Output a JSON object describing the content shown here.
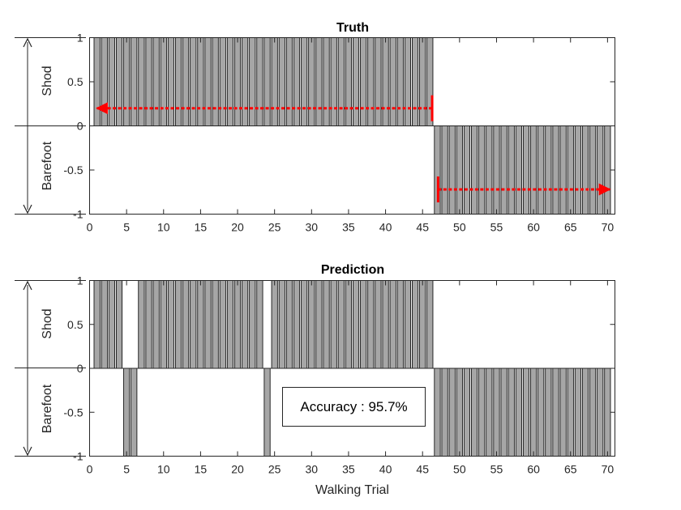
{
  "chart_data": [
    {
      "type": "bar",
      "title": "Truth",
      "xlabel": "",
      "ylabel_categories": {
        "positive": "Shod",
        "negative": "Barefoot"
      },
      "xlim": [
        0,
        71
      ],
      "ylim": [
        -1,
        1
      ],
      "xticks": [
        0,
        5,
        10,
        15,
        20,
        25,
        30,
        35,
        40,
        45,
        50,
        55,
        60,
        65,
        70
      ],
      "yticks": [
        1,
        0.5,
        0,
        -0.5,
        -1
      ],
      "ytick_labels": [
        "1",
        "0.5",
        "0",
        "-0.5",
        "-1"
      ],
      "x": [
        1,
        2,
        3,
        4,
        5,
        6,
        7,
        8,
        9,
        10,
        11,
        12,
        13,
        14,
        15,
        16,
        17,
        18,
        19,
        20,
        21,
        22,
        23,
        24,
        25,
        26,
        27,
        28,
        29,
        30,
        31,
        32,
        33,
        34,
        35,
        36,
        37,
        38,
        39,
        40,
        41,
        42,
        43,
        44,
        45,
        46,
        47,
        48,
        49,
        50,
        51,
        52,
        53,
        54,
        55,
        56,
        57,
        58,
        59,
        60,
        61,
        62,
        63,
        64,
        65,
        66,
        67,
        68,
        69,
        70
      ],
      "values": [
        1,
        1,
        1,
        1,
        1,
        1,
        1,
        1,
        1,
        1,
        1,
        1,
        1,
        1,
        1,
        1,
        1,
        1,
        1,
        1,
        1,
        1,
        1,
        1,
        1,
        1,
        1,
        1,
        1,
        1,
        1,
        1,
        1,
        1,
        1,
        1,
        1,
        1,
        1,
        1,
        1,
        1,
        1,
        1,
        1,
        1,
        -1,
        -1,
        -1,
        -1,
        -1,
        -1,
        -1,
        -1,
        -1,
        -1,
        -1,
        -1,
        -1,
        -1,
        -1,
        -1,
        -1,
        -1,
        -1,
        -1,
        -1,
        -1,
        -1,
        -1
      ],
      "bar_color": "#a6a6a6",
      "annotations": [
        {
          "type": "arrow",
          "from_x": 46.3,
          "to_x": 1,
          "y": 0.2,
          "color": "#ff0000"
        },
        {
          "type": "arrow",
          "from_x": 47.1,
          "to_x": 70.3,
          "y": -0.72,
          "color": "#ff0000"
        }
      ]
    },
    {
      "type": "bar",
      "title": "Prediction",
      "xlabel": "Walking Trial",
      "ylabel_categories": {
        "positive": "Shod",
        "negative": "Barefoot"
      },
      "xlim": [
        0,
        71
      ],
      "ylim": [
        -1,
        1
      ],
      "xticks": [
        0,
        5,
        10,
        15,
        20,
        25,
        30,
        35,
        40,
        45,
        50,
        55,
        60,
        65,
        70
      ],
      "yticks": [
        1,
        0.5,
        0,
        -0.5,
        -1
      ],
      "ytick_labels": [
        "1",
        "0.5",
        "0",
        "-0.5",
        "-1"
      ],
      "x": [
        1,
        2,
        3,
        4,
        5,
        6,
        7,
        8,
        9,
        10,
        11,
        12,
        13,
        14,
        15,
        16,
        17,
        18,
        19,
        20,
        21,
        22,
        23,
        24,
        25,
        26,
        27,
        28,
        29,
        30,
        31,
        32,
        33,
        34,
        35,
        36,
        37,
        38,
        39,
        40,
        41,
        42,
        43,
        44,
        45,
        46,
        47,
        48,
        49,
        50,
        51,
        52,
        53,
        54,
        55,
        56,
        57,
        58,
        59,
        60,
        61,
        62,
        63,
        64,
        65,
        66,
        67,
        68,
        69,
        70
      ],
      "values": [
        1,
        1,
        1,
        1,
        -1,
        -1,
        1,
        1,
        1,
        1,
        1,
        1,
        1,
        1,
        1,
        1,
        1,
        1,
        1,
        1,
        1,
        1,
        1,
        -1,
        1,
        1,
        1,
        1,
        1,
        1,
        1,
        1,
        1,
        1,
        1,
        1,
        1,
        1,
        1,
        1,
        1,
        1,
        1,
        1,
        1,
        1,
        -1,
        -1,
        -1,
        -1,
        -1,
        -1,
        -1,
        -1,
        -1,
        -1,
        -1,
        -1,
        -1,
        -1,
        -1,
        -1,
        -1,
        -1,
        -1,
        -1,
        -1,
        -1,
        -1,
        -1
      ],
      "bar_color": "#a6a6a6",
      "annotation_text": "Accuracy : 95.7%"
    }
  ]
}
